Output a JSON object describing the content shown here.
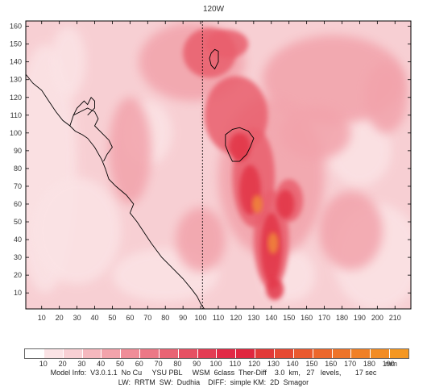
{
  "map": {
    "top_label": "120W",
    "x_ticks": [
      10,
      20,
      30,
      40,
      50,
      60,
      70,
      80,
      90,
      100,
      110,
      120,
      130,
      140,
      150,
      160,
      170,
      180,
      190,
      200,
      210
    ],
    "y_ticks": [
      10,
      20,
      30,
      40,
      50,
      60,
      70,
      80,
      90,
      100,
      110,
      120,
      130,
      140,
      150,
      160
    ],
    "x_range": [
      1,
      219
    ],
    "y_range": [
      1,
      163
    ],
    "meridian_x": 101,
    "field_colors": {
      "background": "#f7cfd3",
      "low": "#fbe3e5",
      "mid": "#f2a3ab",
      "high": "#e95f6d",
      "very_high": "#e23547",
      "peak": "#f0833a"
    }
  },
  "legend": {
    "labels": [
      "10",
      "20",
      "30",
      "40",
      "50",
      "60",
      "70",
      "80",
      "90",
      "100",
      "110",
      "120",
      "130",
      "140",
      "150",
      "160",
      "170",
      "180",
      "190"
    ],
    "unit": "mm",
    "colors": [
      "#ffffff",
      "#fbe3e5",
      "#f8d0d4",
      "#f5b8be",
      "#f2a3ab",
      "#ef8d98",
      "#ec7886",
      "#e96474",
      "#e65063",
      "#e33c53",
      "#e12a46",
      "#e0273f",
      "#e23a38",
      "#e64a33",
      "#ea5a2f",
      "#ec672c",
      "#ee7429",
      "#f08026",
      "#f28c24",
      "#f49722"
    ]
  },
  "info": {
    "line1": "Model Info:  V3.0.1.1  No Cu     YSU PBL     WSM  6class  Ther-Diff    3.0  km,   27   levels,       17 sec",
    "line2": "LW:  RRTM  SW:  Dudhia    DIFF:  simple KM:  2D  Smagor"
  }
}
